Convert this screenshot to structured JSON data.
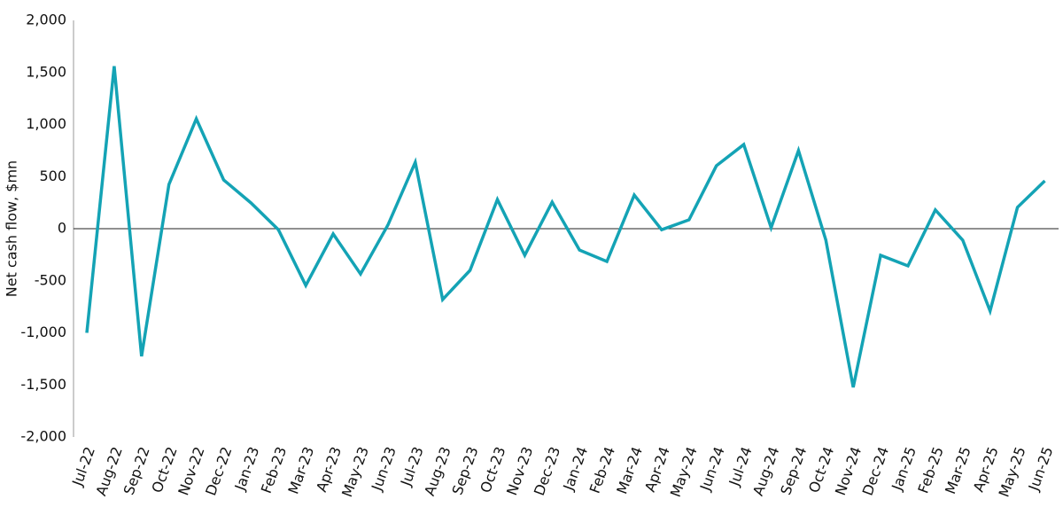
{
  "chart_data": {
    "type": "line",
    "y_label": "Net cash flow, $mn",
    "categories": [
      "Jul-22",
      "Aug-22",
      "Sep-22",
      "Oct-22",
      "Nov-22",
      "Dec-22",
      "Jan-23",
      "Feb-23",
      "Mar-23",
      "Apr-23",
      "May-23",
      "Jun-23",
      "Jul-23",
      "Aug-23",
      "Sep-23",
      "Oct-23",
      "Nov-23",
      "Dec-23",
      "Jan-24",
      "Feb-24",
      "Mar-24",
      "Apr-24",
      "May-24",
      "Jun-24",
      "Jul-24",
      "Aug-24",
      "Sep-24",
      "Oct-24",
      "Nov-24",
      "Dec-24",
      "Jan-25",
      "Feb-25",
      "Mar-25",
      "Apr-25",
      "May-25",
      "Jun-25"
    ],
    "values": [
      -1000,
      1560,
      -1225,
      425,
      1055,
      468,
      247,
      -10,
      -545,
      -50,
      -435,
      35,
      638,
      -680,
      -400,
      280,
      -255,
      255,
      -205,
      -315,
      323,
      -10,
      85,
      604,
      808,
      10,
      750,
      -110,
      -1523,
      -255,
      -357,
      180,
      -110,
      -790,
      205,
      460
    ],
    "color": "#14a3b5",
    "ylim": [
      -2000,
      2000
    ],
    "yticks": [
      {
        "value": 2000,
        "label": "2,000"
      },
      {
        "value": 1500,
        "label": "1,500"
      },
      {
        "value": 1000,
        "label": "1,000"
      },
      500,
      0,
      -500,
      {
        "value": -1000,
        "label": "-1,000"
      },
      {
        "value": -1500,
        "label": "-1,500"
      },
      {
        "value": -2000,
        "label": "-2,000"
      }
    ],
    "grid": false
  }
}
